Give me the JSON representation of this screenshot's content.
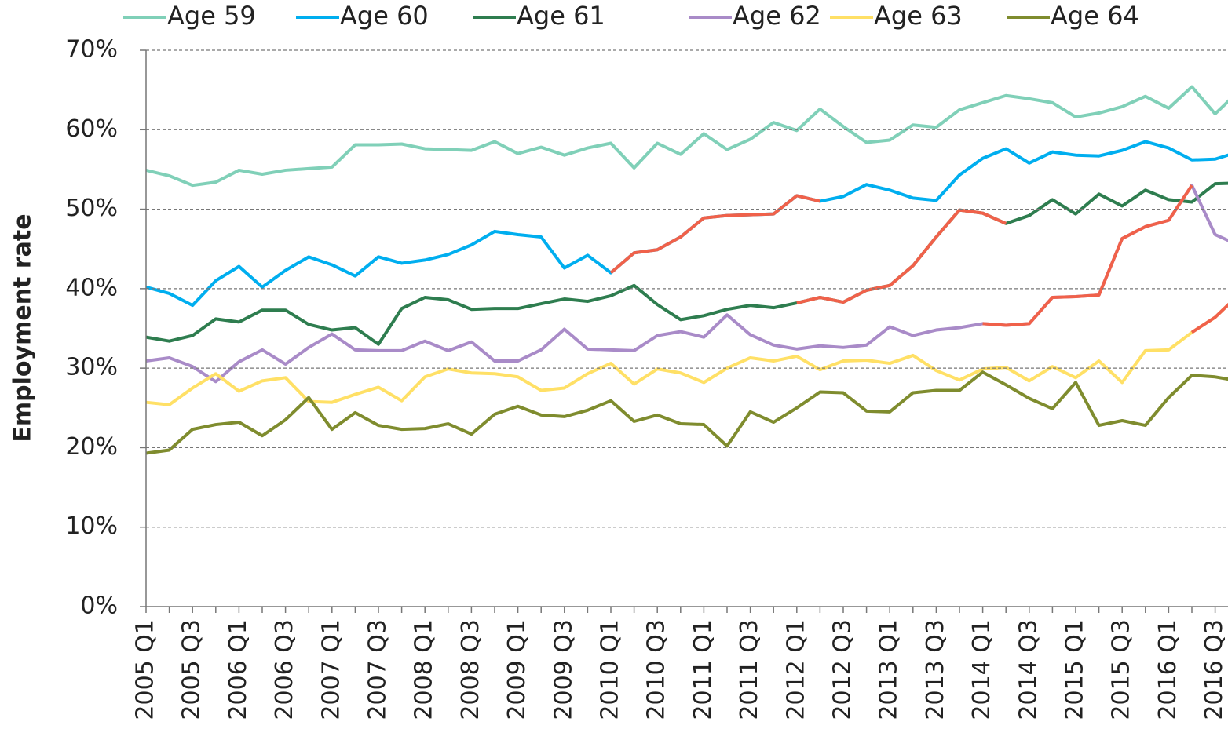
{
  "chart_data": {
    "type": "line",
    "y_axis_label": "Employment rate",
    "categories": [
      "2005 Q1",
      null,
      "2005 Q3",
      null,
      "2006 Q1",
      null,
      "2006 Q3",
      null,
      "2007 Q1",
      null,
      "2007 Q3",
      null,
      "2008 Q1",
      null,
      "2008 Q3",
      null,
      "2009 Q1",
      null,
      "2009 Q3",
      null,
      "2010 Q1",
      null,
      "2010 Q3",
      null,
      "2011 Q1",
      null,
      "2011 Q3",
      null,
      "2012 Q1",
      null,
      "2012 Q3",
      null,
      "2013 Q1",
      null,
      "2013 Q3",
      null,
      "2014 Q1",
      null,
      "2014 Q3",
      null,
      "2015 Q1",
      null,
      "2015 Q3",
      null,
      "2016 Q1",
      null,
      "2016 Q3",
      null
    ],
    "highlight_color": "#f0614a",
    "series": [
      {
        "name": "Age 59",
        "color": "#80d0b8",
        "values": [
          54.9,
          54.2,
          53.0,
          53.4,
          54.9,
          54.4,
          54.9,
          55.1,
          55.3,
          58.1,
          58.1,
          58.2,
          57.6,
          57.5,
          57.4,
          58.5,
          57.0,
          57.8,
          56.8,
          57.7,
          58.3,
          55.2,
          58.3,
          56.9,
          59.5,
          57.5,
          58.8,
          60.9,
          59.9,
          62.6,
          60.4,
          58.4,
          58.7,
          60.6,
          60.3,
          62.5,
          63.4,
          64.3,
          63.9,
          63.4,
          61.6,
          62.1,
          62.9,
          64.2,
          62.7,
          65.4,
          62.0,
          64.8
        ]
      },
      {
        "name": "Age 60",
        "color": "#00aeef",
        "highlight": [
          20,
          29
        ],
        "values": [
          40.2,
          39.4,
          37.9,
          41.0,
          42.8,
          40.2,
          42.3,
          44.0,
          43.0,
          41.6,
          44.0,
          43.2,
          43.6,
          44.3,
          45.5,
          47.2,
          46.8,
          46.5,
          42.6,
          44.2,
          42.0,
          44.5,
          44.9,
          46.5,
          48.9,
          49.2,
          49.3,
          49.4,
          51.7,
          51.0,
          51.6,
          53.1,
          52.4,
          51.4,
          51.1,
          54.3,
          56.4,
          57.6,
          55.8,
          57.2,
          56.8,
          56.7,
          57.4,
          58.5,
          57.7,
          56.2,
          56.3,
          57.2
        ]
      },
      {
        "name": "Age 61",
        "color": "#2e7d4f",
        "highlight": [
          28,
          37
        ],
        "values": [
          33.9,
          33.4,
          34.1,
          36.2,
          35.8,
          37.3,
          37.3,
          35.5,
          34.8,
          35.1,
          33.0,
          37.5,
          38.9,
          38.6,
          37.4,
          37.5,
          37.5,
          38.1,
          38.7,
          38.4,
          39.1,
          40.4,
          38.0,
          36.1,
          36.6,
          37.4,
          37.9,
          37.6,
          38.2,
          38.9,
          38.3,
          39.8,
          40.4,
          42.9,
          46.5,
          49.9,
          49.5,
          48.2,
          49.2,
          51.2,
          49.4,
          51.9,
          50.4,
          52.4,
          51.2,
          50.9,
          53.2,
          53.3
        ]
      },
      {
        "name": "Age 62",
        "color": "#a98bc8",
        "highlight": [
          36,
          45
        ],
        "values": [
          30.9,
          31.3,
          30.2,
          28.3,
          30.8,
          32.3,
          30.5,
          32.6,
          34.3,
          32.3,
          32.2,
          32.2,
          33.4,
          32.2,
          33.3,
          30.9,
          30.9,
          32.3,
          34.9,
          32.4,
          32.3,
          32.2,
          34.1,
          34.6,
          33.9,
          36.7,
          34.2,
          32.9,
          32.4,
          32.8,
          32.6,
          32.9,
          35.2,
          34.1,
          34.8,
          35.1,
          35.6,
          35.4,
          35.6,
          38.9,
          39.0,
          39.2,
          46.3,
          47.8,
          48.6,
          53.0,
          46.8,
          45.5
        ]
      },
      {
        "name": "Age 63",
        "color": "#ffe066",
        "highlight": [
          45,
          47
        ],
        "values": [
          25.7,
          25.4,
          27.5,
          29.3,
          27.1,
          28.4,
          28.8,
          25.8,
          25.7,
          26.7,
          27.6,
          25.9,
          28.9,
          29.9,
          29.4,
          29.3,
          28.9,
          27.2,
          27.5,
          29.3,
          30.6,
          28.0,
          29.9,
          29.4,
          28.2,
          30.0,
          31.3,
          30.9,
          31.5,
          29.8,
          30.9,
          31.0,
          30.6,
          31.6,
          29.7,
          28.5,
          29.9,
          30.1,
          28.4,
          30.2,
          28.8,
          30.9,
          28.2,
          32.2,
          32.3,
          34.5,
          36.4,
          39.2
        ]
      },
      {
        "name": "Age 64",
        "color": "#7f8c2e",
        "values": [
          19.3,
          19.7,
          22.3,
          22.9,
          23.2,
          21.5,
          23.5,
          26.3,
          22.3,
          24.4,
          22.8,
          22.3,
          22.4,
          23.0,
          21.7,
          24.2,
          25.2,
          24.1,
          23.9,
          24.7,
          25.9,
          23.3,
          24.1,
          23.0,
          22.9,
          20.2,
          24.5,
          23.2,
          25.0,
          27.0,
          26.9,
          24.6,
          24.5,
          26.9,
          27.2,
          27.2,
          29.5,
          27.9,
          26.2,
          24.9,
          28.2,
          22.8,
          23.4,
          22.8,
          26.3,
          29.1,
          28.9,
          28.4
        ]
      }
    ],
    "ylim": [
      0,
      70
    ],
    "yticks": [
      {
        "value": 0,
        "label": "0%"
      },
      {
        "value": 10,
        "label": "10%"
      },
      {
        "value": 20,
        "label": "20%"
      },
      {
        "value": 30,
        "label": "30%"
      },
      {
        "value": 40,
        "label": "40%"
      },
      {
        "value": 50,
        "label": "50%"
      },
      {
        "value": 60,
        "label": "60%"
      },
      {
        "value": 70,
        "label": "70%"
      }
    ],
    "grid": true,
    "legend": "top"
  }
}
